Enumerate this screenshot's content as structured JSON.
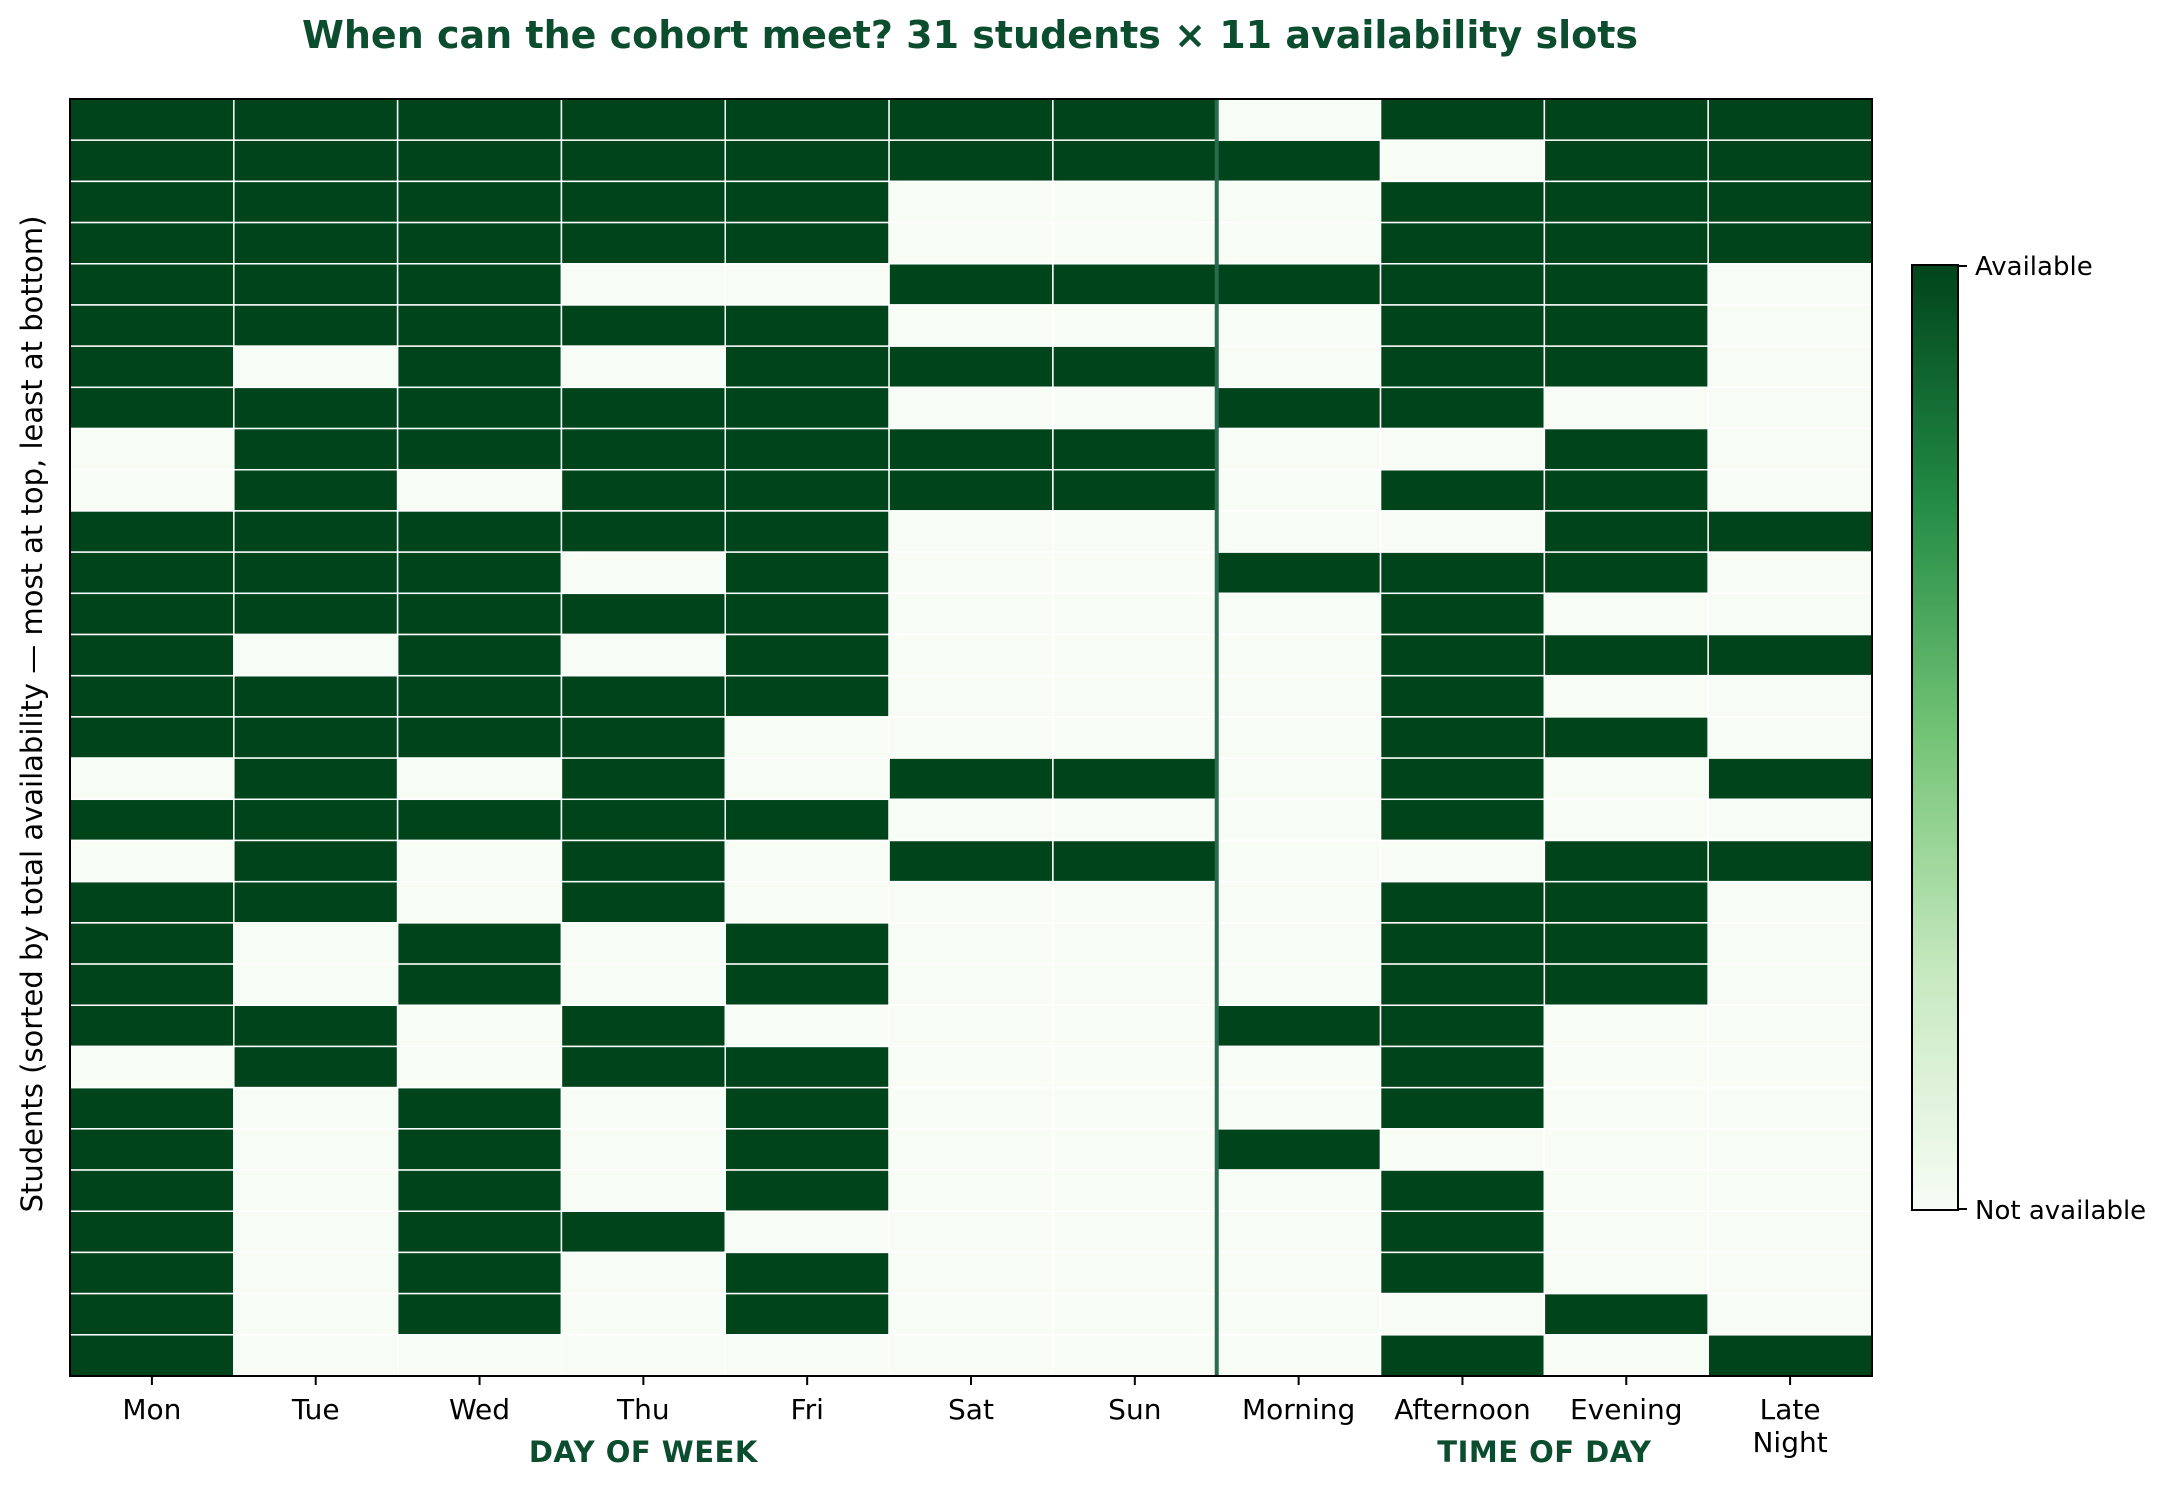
{
  "chart_data": {
    "type": "heatmap",
    "title": "When can the cohort meet?  31 students × 11 availability slots",
    "ylabel": "Students  (sorted by total availability — most at top, least at bottom)",
    "columns": [
      "Mon",
      "Tue",
      "Wed",
      "Thu",
      "Fri",
      "Sat",
      "Sun",
      "Morning",
      "Afternoon",
      "Evening",
      "Late\nNight"
    ],
    "column_groups": [
      {
        "label": "DAY OF WEEK",
        "start": 0,
        "end": 6
      },
      {
        "label": "TIME OF DAY",
        "start": 7,
        "end": 10
      }
    ],
    "colorbar": {
      "max_label": "Available",
      "min_label": "Not available",
      "range": [
        0,
        1
      ]
    },
    "colors": {
      "available": "#00441b",
      "not_available": "#f7fcf5",
      "divider": "#2a6a4f",
      "title": "#0b4d2e"
    },
    "rows": [
      [
        1,
        1,
        1,
        1,
        1,
        1,
        1,
        0,
        1,
        1,
        1
      ],
      [
        1,
        1,
        1,
        1,
        1,
        1,
        1,
        1,
        0,
        1,
        1
      ],
      [
        1,
        1,
        1,
        1,
        1,
        0,
        0,
        0,
        1,
        1,
        1
      ],
      [
        1,
        1,
        1,
        1,
        1,
        0,
        0,
        0,
        1,
        1,
        1
      ],
      [
        1,
        1,
        1,
        0,
        0,
        1,
        1,
        1,
        1,
        1,
        0
      ],
      [
        1,
        1,
        1,
        1,
        1,
        0,
        0,
        0,
        1,
        1,
        0
      ],
      [
        1,
        0,
        1,
        0,
        1,
        1,
        1,
        0,
        1,
        1,
        0
      ],
      [
        1,
        1,
        1,
        1,
        1,
        0,
        0,
        1,
        1,
        0,
        0
      ],
      [
        0,
        1,
        1,
        1,
        1,
        1,
        1,
        0,
        0,
        1,
        0
      ],
      [
        0,
        1,
        0,
        1,
        1,
        1,
        1,
        0,
        1,
        1,
        0
      ],
      [
        1,
        1,
        1,
        1,
        1,
        0,
        0,
        0,
        0,
        1,
        1
      ],
      [
        1,
        1,
        1,
        0,
        1,
        0,
        0,
        1,
        1,
        1,
        0
      ],
      [
        1,
        1,
        1,
        1,
        1,
        0,
        0,
        0,
        1,
        0,
        0
      ],
      [
        1,
        0,
        1,
        0,
        1,
        0,
        0,
        0,
        1,
        1,
        1
      ],
      [
        1,
        1,
        1,
        1,
        1,
        0,
        0,
        0,
        1,
        0,
        0
      ],
      [
        1,
        1,
        1,
        1,
        0,
        0,
        0,
        0,
        1,
        1,
        0
      ],
      [
        0,
        1,
        0,
        1,
        0,
        1,
        1,
        0,
        1,
        0,
        1
      ],
      [
        1,
        1,
        1,
        1,
        1,
        0,
        0,
        0,
        1,
        0,
        0
      ],
      [
        0,
        1,
        0,
        1,
        0,
        1,
        1,
        0,
        0,
        1,
        1
      ],
      [
        1,
        1,
        0,
        1,
        0,
        0,
        0,
        0,
        1,
        1,
        0
      ],
      [
        1,
        0,
        1,
        0,
        1,
        0,
        0,
        0,
        1,
        1,
        0
      ],
      [
        1,
        0,
        1,
        0,
        1,
        0,
        0,
        0,
        1,
        1,
        0
      ],
      [
        1,
        1,
        0,
        1,
        0,
        0,
        0,
        1,
        1,
        0,
        0
      ],
      [
        0,
        1,
        0,
        1,
        1,
        0,
        0,
        0,
        1,
        0,
        0
      ],
      [
        1,
        0,
        1,
        0,
        1,
        0,
        0,
        0,
        1,
        0,
        0
      ],
      [
        1,
        0,
        1,
        0,
        1,
        0,
        0,
        1,
        0,
        0,
        0
      ],
      [
        1,
        0,
        1,
        0,
        1,
        0,
        0,
        0,
        1,
        0,
        0
      ],
      [
        1,
        0,
        1,
        1,
        0,
        0,
        0,
        0,
        1,
        0,
        0
      ],
      [
        1,
        0,
        1,
        0,
        1,
        0,
        0,
        0,
        1,
        0,
        0
      ],
      [
        1,
        0,
        1,
        0,
        1,
        0,
        0,
        0,
        0,
        1,
        0
      ],
      [
        1,
        0,
        0,
        0,
        0,
        0,
        0,
        0,
        1,
        0,
        1
      ]
    ]
  }
}
